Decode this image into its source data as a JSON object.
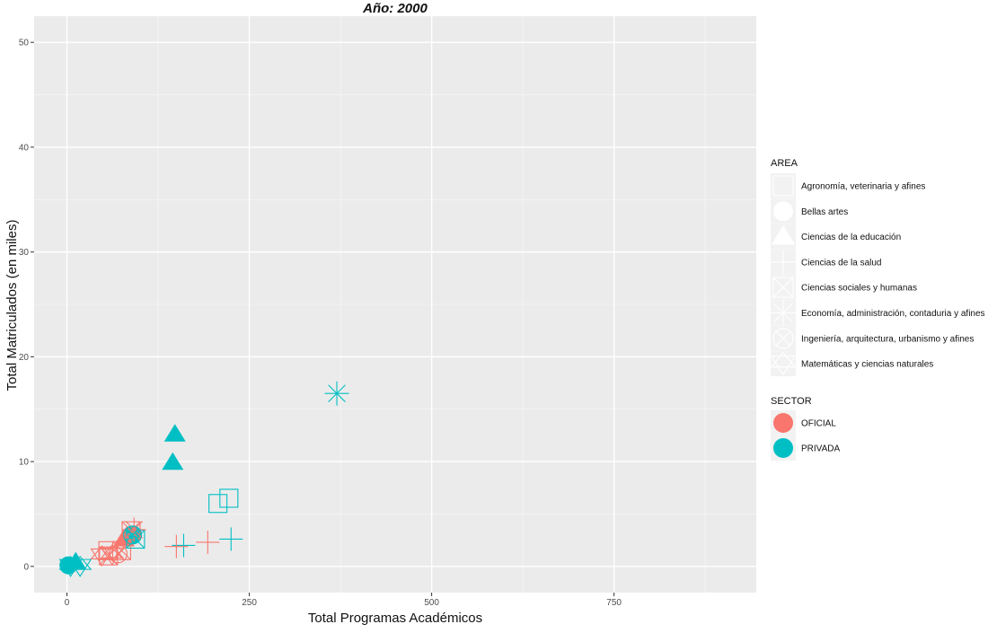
{
  "chart_data": {
    "type": "scatter",
    "title": "Año: 2000",
    "xlabel": "Total Programas Académicos",
    "ylabel": "Total Matriculados (en miles)",
    "xlim": [
      -45,
      945
    ],
    "ylim": [
      -2.5,
      52.5
    ],
    "x_ticks": [
      {
        "value": 0,
        "label": "0"
      },
      {
        "value": 250,
        "label": "250"
      },
      {
        "value": 500,
        "label": "500"
      },
      {
        "value": 750,
        "label": "750"
      }
    ],
    "y_ticks": [
      {
        "value": 0,
        "label": "0"
      },
      {
        "value": 10,
        "label": "10"
      },
      {
        "value": 20,
        "label": "20"
      },
      {
        "value": 30,
        "label": "30"
      },
      {
        "value": 40,
        "label": "40"
      },
      {
        "value": 50,
        "label": "50"
      }
    ],
    "grid": true,
    "legend_position": "right",
    "area_legend": {
      "title": "AREA",
      "items": [
        {
          "label": "Agronomía, veterinaria y afines",
          "shape": "square"
        },
        {
          "label": "Bellas artes",
          "shape": "circle"
        },
        {
          "label": "Ciencias de la educación",
          "shape": "triangle"
        },
        {
          "label": "Ciencias de la salud",
          "shape": "plus"
        },
        {
          "label": "Ciencias sociales y humanas",
          "shape": "boxed-x"
        },
        {
          "label": "Economía, administración, contaduria y afines",
          "shape": "asterisk"
        },
        {
          "label": "Ingeniería, arquitectura, urbanismo y afines",
          "shape": "circle-plus"
        },
        {
          "label": "Matemáticas y ciencias naturales",
          "shape": "triangle-down"
        }
      ]
    },
    "sector_legend": {
      "title": "SECTOR",
      "items": [
        {
          "label": "OFICIAL",
          "color": "#F8766D"
        },
        {
          "label": "PRIVADA",
          "color": "#00BFC4"
        }
      ]
    },
    "points": [
      {
        "x": 222,
        "y": 6.5,
        "area": "Agronomía, veterinaria y afines",
        "sector": "PRIVADA"
      },
      {
        "x": 207,
        "y": 6.0,
        "area": "Agronomía, veterinaria y afines",
        "sector": "PRIVADA"
      },
      {
        "x": 56,
        "y": 1.5,
        "area": "Agronomía, veterinaria y afines",
        "sector": "OFICIAL"
      },
      {
        "x": 88,
        "y": 3.0,
        "area": "Bellas artes",
        "sector": "OFICIAL"
      },
      {
        "x": 90,
        "y": 3.0,
        "area": "Bellas artes",
        "sector": "PRIVADA"
      },
      {
        "x": 2,
        "y": 0.1,
        "area": "Bellas artes",
        "sector": "PRIVADA"
      },
      {
        "x": 148,
        "y": 12.6,
        "area": "Ciencias de la educación",
        "sector": "PRIVADA"
      },
      {
        "x": 145,
        "y": 9.9,
        "area": "Ciencias de la educación",
        "sector": "PRIVADA"
      },
      {
        "x": 78,
        "y": 2.6,
        "area": "Ciencias de la educación",
        "sector": "OFICIAL"
      },
      {
        "x": 12,
        "y": 0.4,
        "area": "Ciencias de la educación",
        "sector": "PRIVADA"
      },
      {
        "x": 225,
        "y": 2.6,
        "area": "Ciencias de la salud",
        "sector": "PRIVADA"
      },
      {
        "x": 160,
        "y": 2.0,
        "area": "Ciencias de la salud",
        "sector": "PRIVADA"
      },
      {
        "x": 193,
        "y": 2.3,
        "area": "Ciencias de la salud",
        "sector": "OFICIAL"
      },
      {
        "x": 150,
        "y": 1.9,
        "area": "Ciencias de la salud",
        "sector": "OFICIAL"
      },
      {
        "x": 57,
        "y": 1.0,
        "area": "Ciencias sociales y humanas",
        "sector": "OFICIAL"
      },
      {
        "x": 75,
        "y": 1.5,
        "area": "Ciencias sociales y humanas",
        "sector": "OFICIAL"
      },
      {
        "x": 88,
        "y": 3.4,
        "area": "Ciencias sociales y humanas",
        "sector": "OFICIAL"
      },
      {
        "x": 94,
        "y": 2.6,
        "area": "Ciencias sociales y humanas",
        "sector": "PRIVADA"
      },
      {
        "x": 370,
        "y": 16.5,
        "area": "Economía, administración, contaduria y afines",
        "sector": "PRIVADA"
      },
      {
        "x": 92,
        "y": 3.5,
        "area": "Economía, administración, contaduria y afines",
        "sector": "OFICIAL"
      },
      {
        "x": 90,
        "y": 3.0,
        "area": "Ingeniería, arquitectura, urbanismo y afines",
        "sector": "PRIVADA"
      },
      {
        "x": 70,
        "y": 1.2,
        "area": "Ingeniería, arquitectura, urbanismo y afines",
        "sector": "OFICIAL"
      },
      {
        "x": 48,
        "y": 1.0,
        "area": "Matemáticas y ciencias naturales",
        "sector": "OFICIAL"
      },
      {
        "x": 62,
        "y": 1.1,
        "area": "Matemáticas y ciencias naturales",
        "sector": "OFICIAL"
      },
      {
        "x": 18,
        "y": 0.0,
        "area": "Matemáticas y ciencias naturales",
        "sector": "PRIVADA"
      },
      {
        "x": 5,
        "y": 0.0,
        "area": "Matemáticas y ciencias naturales",
        "sector": "PRIVADA"
      }
    ]
  }
}
